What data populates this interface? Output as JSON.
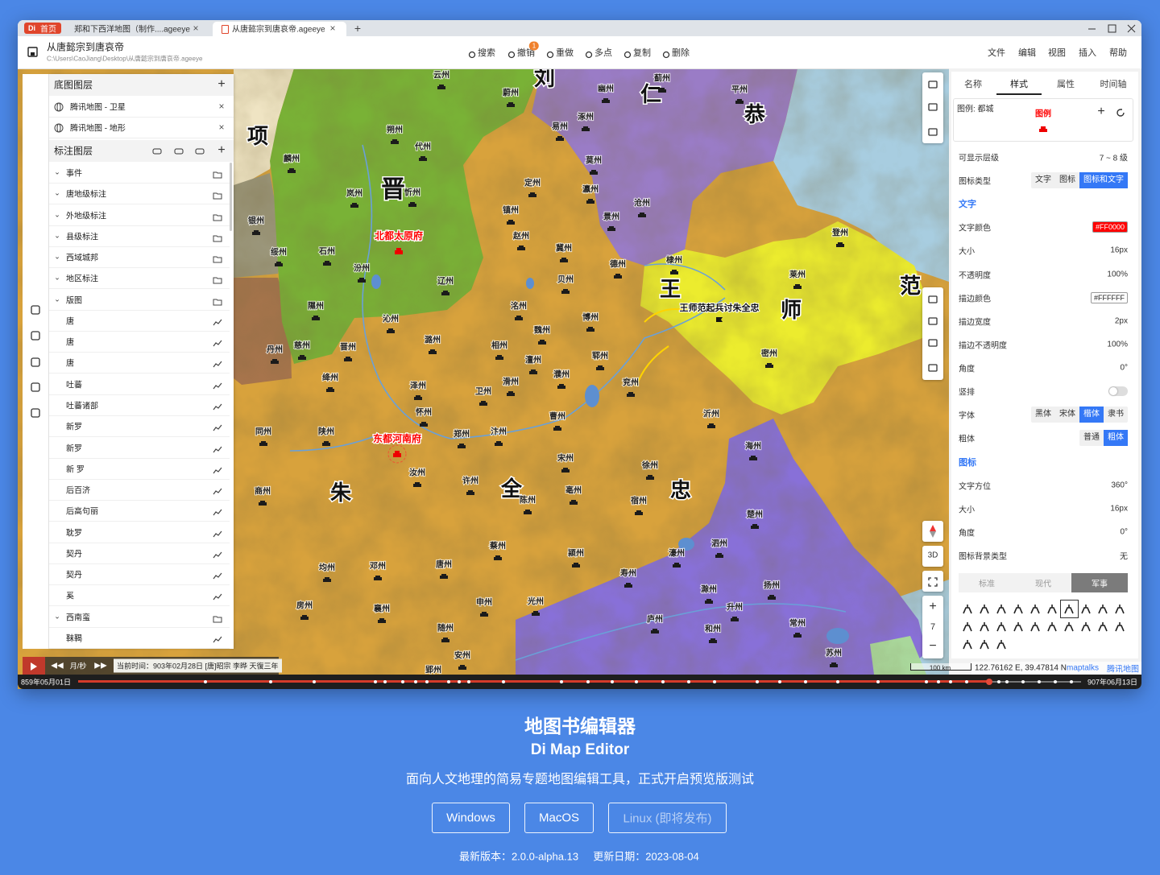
{
  "tabs": {
    "logo": "Di",
    "home": "首页",
    "items": [
      "郑和下西洋地图（制作....ageeye",
      "从唐懿宗到唐哀帝.ageeye"
    ]
  },
  "file": {
    "name": "从唐懿宗到唐哀帝",
    "path": "C:\\Users\\CaoJiang\\Desktop\\从唐懿宗到唐哀帝.ageeye"
  },
  "toolbar": {
    "items": [
      "搜索",
      "撤销",
      "重做",
      "多点",
      "复制",
      "删除"
    ],
    "badge": "1"
  },
  "menu": [
    "文件",
    "编辑",
    "视图",
    "插入",
    "帮助"
  ],
  "base_layers": {
    "title": "底图图层",
    "items": [
      "腾讯地图 - 卫星",
      "腾讯地图 - 地形"
    ]
  },
  "label_layers": {
    "title": "标注图层",
    "items": [
      {
        "name": "事件",
        "group": true
      },
      {
        "name": "唐地级标注",
        "group": true
      },
      {
        "name": "外地级标注",
        "group": true
      },
      {
        "name": "县级标注",
        "group": true
      },
      {
        "name": "西域城邦",
        "group": true
      },
      {
        "name": "地区标注",
        "group": true
      },
      {
        "name": "版图",
        "group": true
      },
      {
        "name": "唐",
        "group": false
      },
      {
        "name": "唐",
        "group": false
      },
      {
        "name": "唐",
        "group": false
      },
      {
        "name": "吐蕃",
        "group": false
      },
      {
        "name": "吐蕃诸部",
        "group": false
      },
      {
        "name": "新罗",
        "group": false
      },
      {
        "name": "新罗",
        "group": false
      },
      {
        "name": "新 罗",
        "group": false
      },
      {
        "name": "后百济",
        "group": false
      },
      {
        "name": "后高句丽",
        "group": false
      },
      {
        "name": "耽罗",
        "group": false
      },
      {
        "name": "契丹",
        "group": false
      },
      {
        "name": "契丹",
        "group": false
      },
      {
        "name": "奚",
        "group": false
      },
      {
        "name": "西南蛮",
        "group": true
      },
      {
        "name": "靺鞨",
        "group": false
      }
    ]
  },
  "map": {
    "regions": [
      "刘",
      "仁",
      "恭",
      "项",
      "晋",
      "朱",
      "全",
      "忠",
      "王",
      "师",
      "范"
    ],
    "capitals": [
      "北都太原府",
      "东都河南府"
    ],
    "annotation": "王师范起兵讨朱全忠",
    "places": [
      "云州",
      "蔚州",
      "幽州",
      "蓟州",
      "平州",
      "涿州",
      "易州",
      "朔州",
      "代州",
      "麟州",
      "定州",
      "莫州",
      "瀛州",
      "岚州",
      "忻州",
      "沧州",
      "镇州",
      "景州",
      "赵州",
      "银州",
      "冀州",
      "石州",
      "绥州",
      "汾州",
      "德州",
      "棣州",
      "登州",
      "莱州",
      "辽州",
      "贝州",
      "洺州",
      "隰州",
      "沁州",
      "魏州",
      "博州",
      "晋州",
      "潞州",
      "相州",
      "慈州",
      "丹州",
      "郓州",
      "澶州",
      "濮州",
      "密州",
      "兖州",
      "绛州",
      "泽州",
      "怀州",
      "卫州",
      "滑州",
      "曹州",
      "沂州",
      "同州",
      "陕州",
      "郑州",
      "汴州",
      "海州",
      "宋州",
      "徐州",
      "汝州",
      "许州",
      "亳州",
      "宿州",
      "陈州",
      "商州",
      "楚州",
      "蔡州",
      "颍州",
      "濠州",
      "泗州",
      "唐州",
      "邓州",
      "均州",
      "寿州",
      "扬州",
      "滁州",
      "申州",
      "光州",
      "襄州",
      "房州",
      "升州",
      "庐州",
      "和州",
      "常州",
      "随州",
      "安州",
      "苏州",
      "郢州"
    ],
    "scale": "100 km",
    "coords": "122.76162 E, 39.47814 N",
    "attribution": [
      "maptalks",
      "腾讯地图"
    ],
    "zoom": "7",
    "mode": "3D"
  },
  "style_panel": {
    "tabs": [
      "名称",
      "样式",
      "属性",
      "时间轴"
    ],
    "active_tab": 1,
    "legend_label": "图例: 都城",
    "legend_preview": "图例",
    "rows": [
      {
        "label": "可显示层级",
        "value": "7 ~ 8 级"
      },
      {
        "label": "图标类型",
        "options": [
          "文字",
          "图标",
          "图标和文字"
        ],
        "selected": 2
      },
      {
        "section": "文字"
      },
      {
        "label": "文字颜色",
        "value": "#FF0000",
        "chip": true
      },
      {
        "label": "大小",
        "value": "16px"
      },
      {
        "label": "不透明度",
        "value": "100%"
      },
      {
        "label": "描边颜色",
        "value": "#FFFFFF",
        "chip": true
      },
      {
        "label": "描边宽度",
        "value": "2px"
      },
      {
        "label": "描边不透明度",
        "value": "100%"
      },
      {
        "label": "角度",
        "value": "0°"
      },
      {
        "label": "竖排",
        "toggle": false
      },
      {
        "label": "字体",
        "options": [
          "黑体",
          "宋体",
          "楷体",
          "隶书"
        ],
        "selected": 2
      },
      {
        "label": "粗体",
        "options": [
          "普通",
          "粗体"
        ],
        "selected": 1
      },
      {
        "section": "图标"
      },
      {
        "label": "文字方位",
        "value": "360°"
      },
      {
        "label": "大小",
        "value": "16px"
      },
      {
        "label": "角度",
        "value": "0°"
      },
      {
        "label": "图标背景类型",
        "value": "无"
      }
    ],
    "icon_styles": {
      "options": [
        "标准",
        "现代",
        "军事"
      ],
      "selected": 2
    }
  },
  "timeline": {
    "speed": "月/秒",
    "current": "当前时间：903年02月28日 [唐]昭宗 李晔 天復三年",
    "start": "859年05月01日",
    "end": "907年06月13日"
  },
  "footer": {
    "title": "地图书编辑器",
    "subtitle": "Di Map Editor",
    "tagline": "面向人文地理的简易专题地图编辑工具，正式开启预览版测试",
    "buttons": [
      "Windows",
      "MacOS",
      "Linux (即将发布)"
    ],
    "version": "最新版本：2.0.0-alpha.13",
    "date": "更新日期：2023-08-04"
  }
}
